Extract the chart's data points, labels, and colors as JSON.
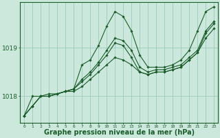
{
  "bg_color": "#cce8dc",
  "grid_color": "#99ccbb",
  "line_color": "#1a5c2a",
  "marker_color": "#1a5c2a",
  "xlabel": "Graphe pression niveau de la mer (hPa)",
  "xlabel_fontsize": 7,
  "xticks": [
    0,
    1,
    2,
    3,
    4,
    5,
    6,
    7,
    8,
    9,
    10,
    11,
    12,
    13,
    14,
    15,
    16,
    17,
    18,
    19,
    20,
    21,
    22,
    23
  ],
  "ytick_labels": [
    "1018",
    "1019"
  ],
  "ytick_values": [
    1018,
    1019
  ],
  "ylim": [
    1017.45,
    1019.95
  ],
  "xlim": [
    -0.5,
    23.5
  ],
  "series": [
    [
      1017.6,
      1017.8,
      1018.0,
      1018.0,
      1018.05,
      1018.1,
      1018.15,
      1018.65,
      1018.75,
      1019.05,
      1019.45,
      1019.75,
      1019.65,
      1019.35,
      1018.85,
      1018.6,
      1018.6,
      1018.6,
      1018.65,
      1018.75,
      1018.95,
      1019.35,
      1019.75,
      1019.85
    ],
    [
      1017.6,
      1017.8,
      1018.0,
      1018.0,
      1018.05,
      1018.1,
      1018.15,
      1018.35,
      1018.5,
      1018.7,
      1018.95,
      1019.2,
      1019.15,
      1018.95,
      1018.6,
      1018.5,
      1018.55,
      1018.55,
      1018.6,
      1018.65,
      1018.8,
      1018.95,
      1019.35,
      1019.55
    ],
    [
      1017.6,
      1018.0,
      1018.0,
      1018.05,
      1018.05,
      1018.1,
      1018.1,
      1018.2,
      1018.35,
      1018.5,
      1018.65,
      1018.8,
      1018.75,
      1018.65,
      1018.5,
      1018.45,
      1018.5,
      1018.5,
      1018.55,
      1018.6,
      1018.75,
      1018.9,
      1019.2,
      1019.4
    ],
    [
      1017.6,
      1017.8,
      1018.0,
      1018.0,
      1018.05,
      1018.1,
      1018.15,
      1018.3,
      1018.45,
      1018.65,
      1018.85,
      1019.1,
      1019.05,
      1018.8,
      1018.5,
      1018.45,
      1018.5,
      1018.5,
      1018.55,
      1018.6,
      1018.75,
      1018.9,
      1019.3,
      1019.5
    ]
  ]
}
